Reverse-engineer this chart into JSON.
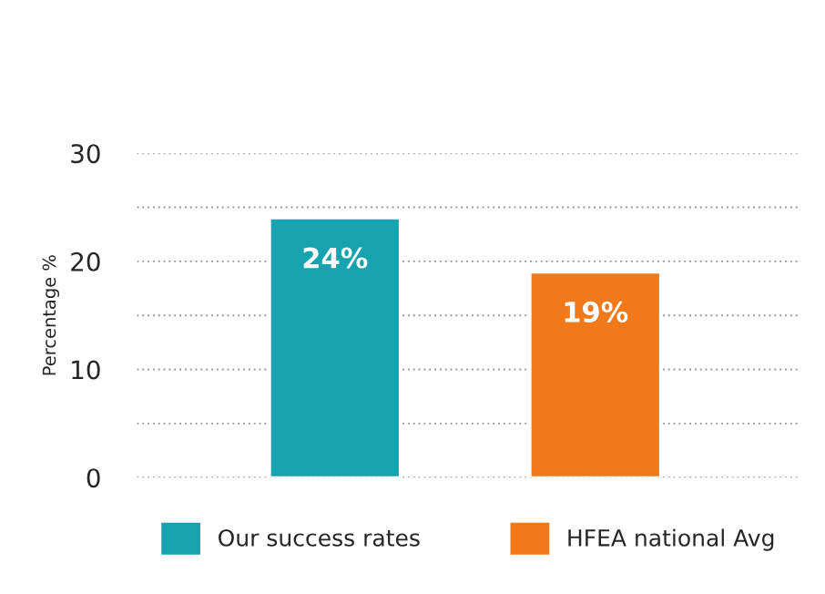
{
  "chart_data": {
    "type": "bar",
    "ylabel": "Percentage %",
    "categories": [
      null,
      null
    ],
    "series": [
      {
        "name": "Our success rates",
        "color": "#17a2b0",
        "values": [
          24,
          null
        ],
        "value_labels": [
          "24%",
          null
        ]
      },
      {
        "name": "HFEA national Avg",
        "color": "#f07a1a",
        "values": [
          null,
          19
        ],
        "value_labels": [
          null,
          "19%"
        ]
      }
    ],
    "ylim": [
      0,
      30
    ],
    "yticks": [
      0,
      {
        "value": 5,
        "label": null
      },
      10,
      {
        "value": 15,
        "label": null
      },
      20,
      {
        "value": 25,
        "label": null
      },
      30
    ],
    "grid": "y",
    "legend": "bottom"
  }
}
